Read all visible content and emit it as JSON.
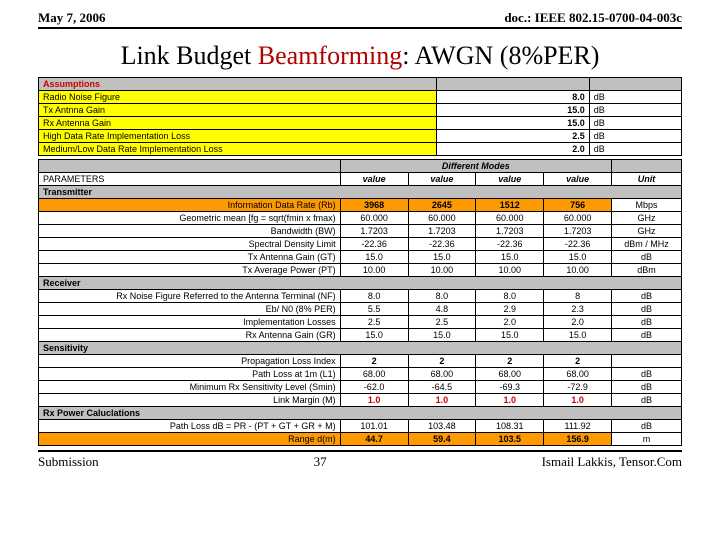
{
  "header": {
    "date": "May 7, 2006",
    "doc": "doc.: IEEE 802.15-0700-04-003c"
  },
  "title": {
    "t1": "Link Budget ",
    "t2": "Beamforming",
    "t3": ": AWGN (8%PER)"
  },
  "footer": {
    "left": "Submission",
    "mid": "37",
    "right": "Ismail Lakkis, Tensor.Com"
  },
  "assumptions": {
    "hdr": "Assumptions",
    "rows": [
      {
        "label": "Radio Noise Figure",
        "val": "8.0",
        "unit": "dB"
      },
      {
        "label": "Tx Antnna Gain",
        "val": "15.0",
        "unit": "dB"
      },
      {
        "label": "Rx Antenna Gain",
        "val": "15.0",
        "unit": "dB"
      },
      {
        "label": "High Data Rate Implementation Loss",
        "val": "2.5",
        "unit": "dB"
      },
      {
        "label": "Medium/Low Data Rate Implementation Loss",
        "val": "2.0",
        "unit": "dB"
      }
    ]
  },
  "modes_hdr": {
    "diff": "Different Modes",
    "param": "PARAMETERS",
    "value": "value",
    "unit": "Unit"
  },
  "sections": {
    "tx": "Transmitter",
    "rx": "Receiver",
    "sens": "Sensitivity",
    "rxp": "Rx Power Caluclations"
  },
  "tx_rows": [
    {
      "label": "Information Data Rate (Rb)",
      "v": [
        "3968",
        "2645",
        "1512",
        "756"
      ],
      "unit": "Mbps",
      "orange": true,
      "bold": true
    },
    {
      "label": "Geometric mean [fg = sqrt(fmin x fmax)",
      "v": [
        "60.000",
        "60.000",
        "60.000",
        "60.000"
      ],
      "unit": "GHz"
    },
    {
      "label": "Bandwidth (BW)",
      "v": [
        "1.7203",
        "1.7203",
        "1.7203",
        "1.7203"
      ],
      "unit": "GHz"
    },
    {
      "label": "Spectral Density Limit",
      "v": [
        "-22.36",
        "-22.36",
        "-22.36",
        "-22.36"
      ],
      "unit": "dBm / MHz"
    },
    {
      "label": "Tx Antenna Gain (GT)",
      "v": [
        "15.0",
        "15.0",
        "15.0",
        "15.0"
      ],
      "unit": "dB"
    },
    {
      "label": "Tx Average Power (PT)",
      "v": [
        "10.00",
        "10.00",
        "10.00",
        "10.00"
      ],
      "unit": "dBm"
    }
  ],
  "rx_rows": [
    {
      "label": "Rx Noise Figure Referred to the Antenna Terminal (NF)",
      "v": [
        "8.0",
        "8.0",
        "8.0",
        "8"
      ],
      "unit": "dB"
    },
    {
      "label": "Eb/ N0 (8% PER)",
      "v": [
        "5.5",
        "4.8",
        "2.9",
        "2.3"
      ],
      "unit": "dB"
    },
    {
      "label": "Implementation Losses",
      "v": [
        "2.5",
        "2.5",
        "2.0",
        "2.0"
      ],
      "unit": "dB"
    },
    {
      "label": "Rx Antenna Gain (GR)",
      "v": [
        "15.0",
        "15.0",
        "15.0",
        "15.0"
      ],
      "unit": "dB"
    }
  ],
  "sens_rows": [
    {
      "label": "Propagation Loss Index",
      "v": [
        "2",
        "2",
        "2",
        "2"
      ],
      "unit": "",
      "bold": true
    },
    {
      "label": "Path Loss at 1m (L1)",
      "v": [
        "68.00",
        "68.00",
        "68.00",
        "68.00"
      ],
      "unit": "dB"
    },
    {
      "label": "Minimum Rx Sensitivity Level (Smin)",
      "v": [
        "-62.0",
        "-64.5",
        "-69.3",
        "-72.9"
      ],
      "unit": "dB"
    },
    {
      "label": "Link Margin (M)",
      "v": [
        "1.0",
        "1.0",
        "1.0",
        "1.0"
      ],
      "unit": "dB",
      "bold": true,
      "red": true
    }
  ],
  "rxp_rows": [
    {
      "label": "Path Loss dB = PR - (PT + GT + GR + M)",
      "v": [
        "101.01",
        "103.48",
        "108.31",
        "111.92"
      ],
      "unit": "dB"
    },
    {
      "label": "Range d(m)",
      "v": [
        "44.7",
        "59.4",
        "103.5",
        "156.9"
      ],
      "unit": "m",
      "orange": true,
      "bold": true
    }
  ]
}
